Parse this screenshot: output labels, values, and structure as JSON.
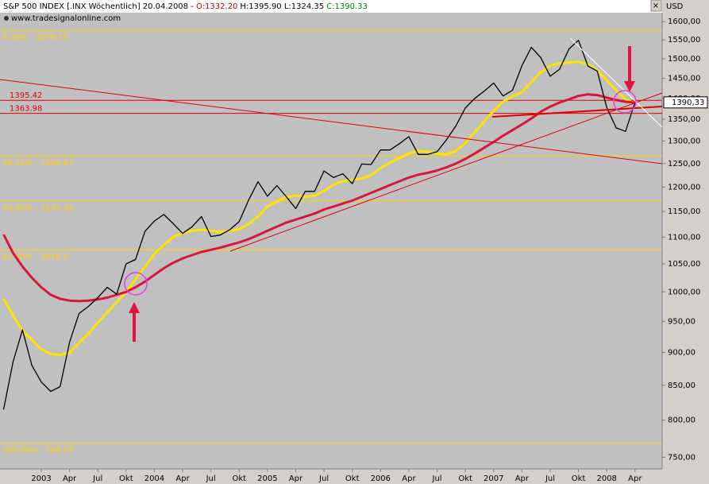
{
  "header": {
    "instrument": "S&P 500 INDEX [.INX  Wöchentlich] 20.04.2008 - ",
    "open": "O:1332.20",
    "high_low": "H:1395.90 L:1324.35",
    "close": "C:1390.33",
    "source": "www.tradesignalonline.com"
  },
  "chart_data": {
    "type": "line",
    "log_scale": true,
    "currency": "USD",
    "ylim": [
      735,
      1625
    ],
    "yticks": [
      {
        "value": 750,
        "label": "750,00"
      },
      {
        "value": 800,
        "label": "800,00"
      },
      {
        "value": 850,
        "label": "850,00"
      },
      {
        "value": 900,
        "label": "900,00"
      },
      {
        "value": 950,
        "label": "950,00"
      },
      {
        "value": 1000,
        "label": "1000,00"
      },
      {
        "value": 1050,
        "label": "1050,00"
      },
      {
        "value": 1100,
        "label": "1100,00"
      },
      {
        "value": 1150,
        "label": "1150,00"
      },
      {
        "value": 1200,
        "label": "1200,00"
      },
      {
        "value": 1250,
        "label": "1250,00"
      },
      {
        "value": 1300,
        "label": "1300,00"
      },
      {
        "value": 1350,
        "label": "1350,00"
      },
      {
        "value": 1400,
        "label": "1400,00"
      },
      {
        "value": 1450,
        "label": "1450,00"
      },
      {
        "value": 1500,
        "label": "1500,00"
      },
      {
        "value": 1550,
        "label": "1550,00"
      },
      {
        "value": 1600,
        "label": "1600,00"
      }
    ],
    "categories": [
      null,
      null,
      null,
      null,
      "2003",
      null,
      null,
      "Apr",
      null,
      null,
      "Jul",
      null,
      null,
      "Okt",
      null,
      null,
      "2004",
      null,
      null,
      "Apr",
      null,
      null,
      "Jul",
      null,
      null,
      "Okt",
      null,
      null,
      "2005",
      null,
      null,
      "Apr",
      null,
      null,
      "Jul",
      null,
      null,
      "Okt",
      null,
      null,
      "2006",
      null,
      null,
      "Apr",
      null,
      null,
      "Jul",
      null,
      null,
      "Okt",
      null,
      null,
      "2007",
      null,
      null,
      "Apr",
      null,
      null,
      "Jul",
      null,
      null,
      "Okt",
      null,
      null,
      "2008",
      null,
      null,
      "Apr"
    ],
    "series": [
      {
        "color": "#000000",
        "width": 1.3,
        "values": [
          815,
          885,
          936,
          880,
          855,
          841,
          848,
          916,
          963,
          975,
          990,
          1008,
          996,
          1050,
          1058,
          1111,
          1131,
          1144,
          1126,
          1107,
          1120,
          1140,
          1101,
          1104,
          1114,
          1130,
          1173,
          1211,
          1181,
          1203,
          1180,
          1156,
          1191,
          1191,
          1234,
          1220,
          1228,
          1207,
          1249,
          1248,
          1280,
          1280,
          1294,
          1310,
          1270,
          1270,
          1276,
          1303,
          1335,
          1377,
          1400,
          1418,
          1438,
          1406,
          1420,
          1482,
          1530,
          1503,
          1455,
          1473,
          1526,
          1549,
          1481,
          1468,
          1378,
          1330,
          1322,
          1390.33
        ]
      },
      {
        "color": "#ffe400",
        "width": 3,
        "values": [
          988,
          960,
          935,
          920,
          905,
          898,
          896,
          900,
          915,
          930,
          948,
          965,
          982,
          1000,
          1022,
          1045,
          1068,
          1085,
          1100,
          1108,
          1112,
          1114,
          1112,
          1110,
          1112,
          1115,
          1125,
          1140,
          1160,
          1170,
          1180,
          1182,
          1180,
          1182,
          1192,
          1205,
          1212,
          1215,
          1218,
          1225,
          1240,
          1252,
          1262,
          1272,
          1278,
          1276,
          1272,
          1270,
          1278,
          1295,
          1320,
          1345,
          1370,
          1392,
          1405,
          1415,
          1440,
          1465,
          1482,
          1488,
          1490,
          1492,
          1486,
          1470,
          1445,
          1420,
          1398,
          1388
        ]
      },
      {
        "color": "#d6163a",
        "width": 3,
        "values": [
          1105,
          1070,
          1045,
          1025,
          1008,
          995,
          988,
          985,
          984,
          985,
          987,
          990,
          995,
          1000,
          1008,
          1018,
          1030,
          1042,
          1052,
          1060,
          1066,
          1072,
          1076,
          1080,
          1085,
          1090,
          1096,
          1104,
          1112,
          1120,
          1128,
          1134,
          1140,
          1146,
          1154,
          1160,
          1166,
          1172,
          1180,
          1188,
          1196,
          1204,
          1212,
          1220,
          1226,
          1230,
          1235,
          1242,
          1250,
          1260,
          1272,
          1285,
          1298,
          1312,
          1325,
          1338,
          1352,
          1368,
          1380,
          1390,
          1398,
          1406,
          1410,
          1408,
          1402,
          1396,
          1392,
          1390
        ]
      }
    ],
    "fib_levels": [
      {
        "value": 1576.15,
        "label": "0.00% - 1576.15"
      },
      {
        "value": 1266.87,
        "label": "38.20% - 1266.87"
      },
      {
        "value": 1171.34,
        "label": "50.00% - 1171.34"
      },
      {
        "value": 1076.0,
        "label": "61.80% - 1076.0"
      },
      {
        "value": 768.53,
        "label": "100.00% - 768.53"
      }
    ],
    "resistance_levels": [
      {
        "value": 1395.42,
        "label": "1395.42"
      },
      {
        "value": 1363.98,
        "label": "1363.98"
      }
    ],
    "last_price": {
      "value": 1390.33,
      "label": "1390,33"
    }
  }
}
